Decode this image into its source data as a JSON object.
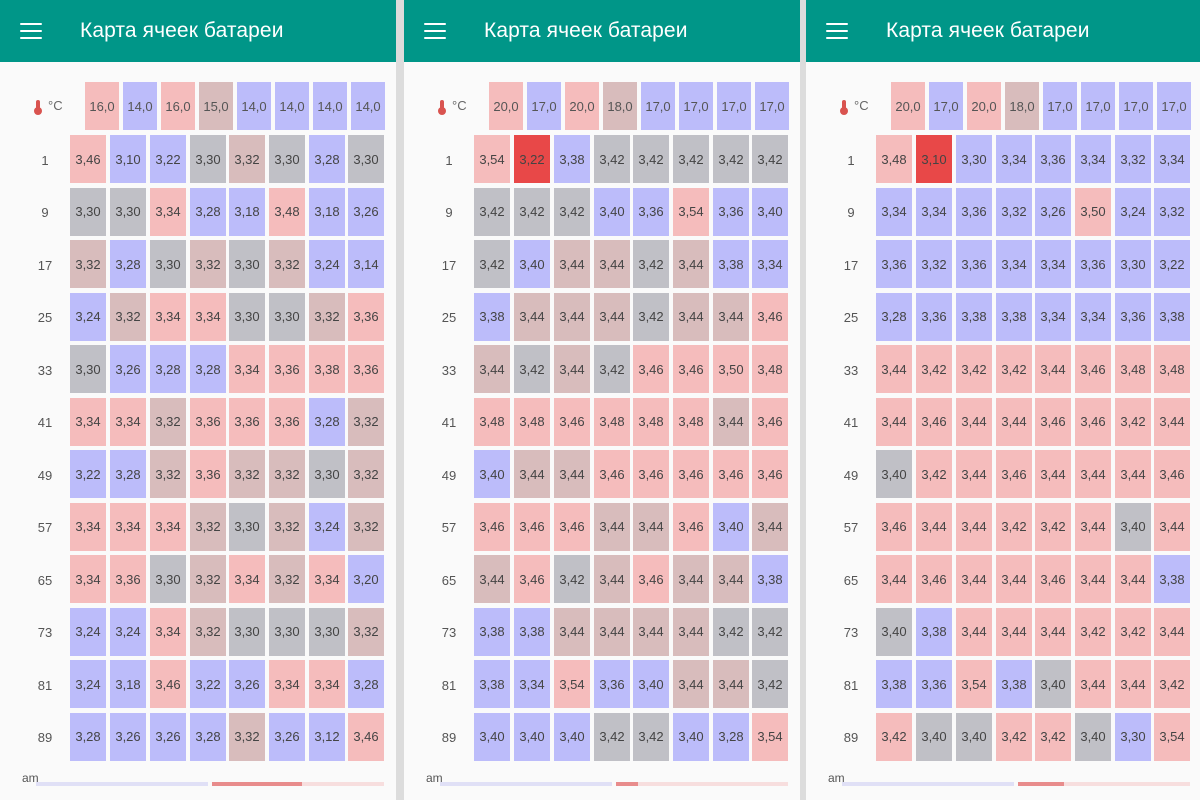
{
  "colors": {
    "appbar": "#009688",
    "cell_cool": "#bcbcfa",
    "cell_gray": "#c0c0c6",
    "cell_warm_gray": "#d8bcbc",
    "cell_warm": "#f5bcbc",
    "cell_hot": "#e84848"
  },
  "screens": [
    {
      "title": "Карта ячеек батареи",
      "temp_unit": "°C",
      "temps": [
        "16,0",
        "14,0",
        "16,0",
        "15,0",
        "14,0",
        "14,0",
        "14,0",
        "14,0"
      ],
      "rows": [
        {
          "label": "1",
          "values": [
            "3,46",
            "3,10",
            "3,22",
            "3,30",
            "3,32",
            "3,30",
            "3,28",
            "3,30"
          ]
        },
        {
          "label": "9",
          "values": [
            "3,30",
            "3,30",
            "3,34",
            "3,28",
            "3,18",
            "3,48",
            "3,18",
            "3,26"
          ]
        },
        {
          "label": "17",
          "values": [
            "3,32",
            "3,28",
            "3,30",
            "3,32",
            "3,30",
            "3,32",
            "3,24",
            "3,14"
          ]
        },
        {
          "label": "25",
          "values": [
            "3,24",
            "3,32",
            "3,34",
            "3,34",
            "3,30",
            "3,30",
            "3,32",
            "3,36"
          ]
        },
        {
          "label": "33",
          "values": [
            "3,30",
            "3,26",
            "3,28",
            "3,28",
            "3,34",
            "3,36",
            "3,38",
            "3,36"
          ]
        },
        {
          "label": "41",
          "values": [
            "3,34",
            "3,34",
            "3,32",
            "3,36",
            "3,36",
            "3,36",
            "3,28",
            "3,32"
          ]
        },
        {
          "label": "49",
          "values": [
            "3,22",
            "3,28",
            "3,32",
            "3,36",
            "3,32",
            "3,32",
            "3,30",
            "3,32"
          ]
        },
        {
          "label": "57",
          "values": [
            "3,34",
            "3,34",
            "3,34",
            "3,32",
            "3,30",
            "3,32",
            "3,24",
            "3,32"
          ]
        },
        {
          "label": "65",
          "values": [
            "3,34",
            "3,36",
            "3,30",
            "3,32",
            "3,34",
            "3,32",
            "3,34",
            "3,20"
          ]
        },
        {
          "label": "73",
          "values": [
            "3,24",
            "3,24",
            "3,34",
            "3,32",
            "3,30",
            "3,30",
            "3,30",
            "3,32"
          ]
        },
        {
          "label": "81",
          "values": [
            "3,24",
            "3,18",
            "3,46",
            "3,22",
            "3,26",
            "3,34",
            "3,34",
            "3,28"
          ]
        },
        {
          "label": "89",
          "values": [
            "3,28",
            "3,26",
            "3,26",
            "3,28",
            "3,32",
            "3,26",
            "3,12",
            "3,46"
          ]
        }
      ],
      "bottom_label": "am"
    },
    {
      "title": "Карта ячеек батареи",
      "temp_unit": "°C",
      "temps": [
        "20,0",
        "17,0",
        "20,0",
        "18,0",
        "17,0",
        "17,0",
        "17,0",
        "17,0"
      ],
      "rows": [
        {
          "label": "1",
          "values": [
            "3,54",
            "3,22",
            "3,38",
            "3,42",
            "3,42",
            "3,42",
            "3,42",
            "3,42"
          ]
        },
        {
          "label": "9",
          "values": [
            "3,42",
            "3,42",
            "3,42",
            "3,40",
            "3,36",
            "3,54",
            "3,36",
            "3,40"
          ]
        },
        {
          "label": "17",
          "values": [
            "3,42",
            "3,40",
            "3,44",
            "3,44",
            "3,42",
            "3,44",
            "3,38",
            "3,34"
          ]
        },
        {
          "label": "25",
          "values": [
            "3,38",
            "3,44",
            "3,44",
            "3,44",
            "3,42",
            "3,44",
            "3,44",
            "3,46"
          ]
        },
        {
          "label": "33",
          "values": [
            "3,44",
            "3,42",
            "3,44",
            "3,42",
            "3,46",
            "3,46",
            "3,50",
            "3,48"
          ]
        },
        {
          "label": "41",
          "values": [
            "3,48",
            "3,48",
            "3,46",
            "3,48",
            "3,48",
            "3,48",
            "3,44",
            "3,46"
          ]
        },
        {
          "label": "49",
          "values": [
            "3,40",
            "3,44",
            "3,44",
            "3,46",
            "3,46",
            "3,46",
            "3,46",
            "3,46"
          ]
        },
        {
          "label": "57",
          "values": [
            "3,46",
            "3,46",
            "3,46",
            "3,44",
            "3,44",
            "3,46",
            "3,40",
            "3,44"
          ]
        },
        {
          "label": "65",
          "values": [
            "3,44",
            "3,46",
            "3,42",
            "3,44",
            "3,46",
            "3,44",
            "3,44",
            "3,38"
          ]
        },
        {
          "label": "73",
          "values": [
            "3,38",
            "3,38",
            "3,44",
            "3,44",
            "3,44",
            "3,44",
            "3,42",
            "3,42"
          ]
        },
        {
          "label": "81",
          "values": [
            "3,38",
            "3,34",
            "3,54",
            "3,36",
            "3,40",
            "3,44",
            "3,44",
            "3,42"
          ]
        },
        {
          "label": "89",
          "values": [
            "3,40",
            "3,40",
            "3,40",
            "3,42",
            "3,42",
            "3,40",
            "3,28",
            "3,54"
          ]
        }
      ],
      "bottom_label": "am"
    },
    {
      "title": "Карта ячеек батареи",
      "temp_unit": "°C",
      "temps": [
        "20,0",
        "17,0",
        "20,0",
        "18,0",
        "17,0",
        "17,0",
        "17,0",
        "17,0"
      ],
      "rows": [
        {
          "label": "1",
          "values": [
            "3,48",
            "3,10",
            "3,30",
            "3,34",
            "3,36",
            "3,34",
            "3,32",
            "3,34"
          ]
        },
        {
          "label": "9",
          "values": [
            "3,34",
            "3,34",
            "3,36",
            "3,32",
            "3,26",
            "3,50",
            "3,24",
            "3,32"
          ]
        },
        {
          "label": "17",
          "values": [
            "3,36",
            "3,32",
            "3,36",
            "3,34",
            "3,34",
            "3,36",
            "3,30",
            "3,22"
          ]
        },
        {
          "label": "25",
          "values": [
            "3,28",
            "3,36",
            "3,38",
            "3,38",
            "3,34",
            "3,34",
            "3,36",
            "3,38"
          ]
        },
        {
          "label": "33",
          "values": [
            "3,44",
            "3,42",
            "3,42",
            "3,42",
            "3,44",
            "3,46",
            "3,48",
            "3,48"
          ]
        },
        {
          "label": "41",
          "values": [
            "3,44",
            "3,46",
            "3,44",
            "3,44",
            "3,46",
            "3,46",
            "3,42",
            "3,44"
          ]
        },
        {
          "label": "49",
          "values": [
            "3,40",
            "3,42",
            "3,44",
            "3,46",
            "3,44",
            "3,44",
            "3,44",
            "3,46"
          ]
        },
        {
          "label": "57",
          "values": [
            "3,46",
            "3,44",
            "3,44",
            "3,42",
            "3,42",
            "3,44",
            "3,40",
            "3,44"
          ]
        },
        {
          "label": "65",
          "values": [
            "3,44",
            "3,46",
            "3,44",
            "3,44",
            "3,46",
            "3,44",
            "3,44",
            "3,38"
          ]
        },
        {
          "label": "73",
          "values": [
            "3,40",
            "3,38",
            "3,44",
            "3,44",
            "3,44",
            "3,42",
            "3,42",
            "3,44"
          ]
        },
        {
          "label": "81",
          "values": [
            "3,38",
            "3,36",
            "3,54",
            "3,38",
            "3,40",
            "3,44",
            "3,44",
            "3,42"
          ]
        },
        {
          "label": "89",
          "values": [
            "3,42",
            "3,40",
            "3,40",
            "3,42",
            "3,42",
            "3,40",
            "3,30",
            "3,54"
          ]
        }
      ],
      "bottom_label": "am"
    }
  ],
  "cell_colors": [
    [
      [
        "warm",
        "cool",
        "cool",
        "gray",
        "warmgray",
        "gray",
        "cool",
        "gray"
      ],
      [
        "gray",
        "gray",
        "warm",
        "cool",
        "cool",
        "warm",
        "cool",
        "cool"
      ],
      [
        "warmgray",
        "cool",
        "gray",
        "warmgray",
        "gray",
        "warmgray",
        "cool",
        "cool"
      ],
      [
        "cool",
        "warmgray",
        "warm",
        "warm",
        "gray",
        "gray",
        "warmgray",
        "warm"
      ],
      [
        "gray",
        "cool",
        "cool",
        "cool",
        "warm",
        "warm",
        "warm",
        "warm"
      ],
      [
        "warm",
        "warm",
        "warmgray",
        "warm",
        "warm",
        "warm",
        "cool",
        "warmgray"
      ],
      [
        "cool",
        "cool",
        "warmgray",
        "warm",
        "warmgray",
        "warmgray",
        "gray",
        "warmgray"
      ],
      [
        "warm",
        "warm",
        "warm",
        "warmgray",
        "gray",
        "warmgray",
        "cool",
        "warmgray"
      ],
      [
        "warm",
        "warm",
        "gray",
        "warmgray",
        "warm",
        "warmgray",
        "warm",
        "cool"
      ],
      [
        "cool",
        "cool",
        "warm",
        "warmgray",
        "gray",
        "gray",
        "gray",
        "warmgray"
      ],
      [
        "cool",
        "cool",
        "warm",
        "cool",
        "cool",
        "warm",
        "warm",
        "cool"
      ],
      [
        "cool",
        "cool",
        "cool",
        "cool",
        "warmgray",
        "cool",
        "cool",
        "warm"
      ]
    ],
    [
      [
        "warm",
        "hot",
        "cool",
        "gray",
        "gray",
        "gray",
        "gray",
        "gray"
      ],
      [
        "gray",
        "gray",
        "gray",
        "cool",
        "cool",
        "warm",
        "cool",
        "cool"
      ],
      [
        "gray",
        "cool",
        "warmgray",
        "warmgray",
        "gray",
        "warmgray",
        "cool",
        "cool"
      ],
      [
        "cool",
        "warmgray",
        "warmgray",
        "warmgray",
        "gray",
        "warmgray",
        "warmgray",
        "warm"
      ],
      [
        "warmgray",
        "gray",
        "warmgray",
        "gray",
        "warm",
        "warm",
        "warm",
        "warm"
      ],
      [
        "warm",
        "warm",
        "warm",
        "warm",
        "warm",
        "warm",
        "warmgray",
        "warm"
      ],
      [
        "cool",
        "warmgray",
        "warmgray",
        "warm",
        "warm",
        "warm",
        "warm",
        "warm"
      ],
      [
        "warm",
        "warm",
        "warm",
        "warmgray",
        "warmgray",
        "warm",
        "cool",
        "warmgray"
      ],
      [
        "warmgray",
        "warm",
        "gray",
        "warmgray",
        "warm",
        "warmgray",
        "warmgray",
        "cool"
      ],
      [
        "cool",
        "cool",
        "warmgray",
        "warmgray",
        "warmgray",
        "warmgray",
        "gray",
        "gray"
      ],
      [
        "cool",
        "cool",
        "warm",
        "cool",
        "cool",
        "warmgray",
        "warmgray",
        "gray"
      ],
      [
        "cool",
        "cool",
        "cool",
        "gray",
        "gray",
        "cool",
        "cool",
        "warm"
      ]
    ],
    [
      [
        "warm",
        "hot",
        "cool",
        "cool",
        "cool",
        "cool",
        "cool",
        "cool"
      ],
      [
        "cool",
        "cool",
        "cool",
        "cool",
        "cool",
        "warm",
        "cool",
        "cool"
      ],
      [
        "cool",
        "cool",
        "cool",
        "cool",
        "cool",
        "cool",
        "cool",
        "cool"
      ],
      [
        "cool",
        "cool",
        "cool",
        "cool",
        "cool",
        "cool",
        "cool",
        "cool"
      ],
      [
        "warm",
        "warm",
        "warm",
        "warm",
        "warm",
        "warm",
        "warm",
        "warm"
      ],
      [
        "warm",
        "warm",
        "warm",
        "warm",
        "warm",
        "warm",
        "warm",
        "warm"
      ],
      [
        "gray",
        "warm",
        "warm",
        "warm",
        "warm",
        "warm",
        "warm",
        "warm"
      ],
      [
        "warm",
        "warm",
        "warm",
        "warm",
        "warm",
        "warm",
        "gray",
        "warm"
      ],
      [
        "warm",
        "warm",
        "warm",
        "warm",
        "warm",
        "warm",
        "warm",
        "cool"
      ],
      [
        "gray",
        "cool",
        "warm",
        "warm",
        "warm",
        "warm",
        "warm",
        "warm"
      ],
      [
        "cool",
        "cool",
        "warm",
        "cool",
        "gray",
        "warm",
        "warm",
        "warm"
      ],
      [
        "warm",
        "gray",
        "gray",
        "warm",
        "warm",
        "gray",
        "cool",
        "warm"
      ]
    ]
  ],
  "temp_colors": [
    [
      "warm",
      "cool",
      "warm",
      "warmgray",
      "cool",
      "cool",
      "cool",
      "cool"
    ],
    [
      "warm",
      "cool",
      "warm",
      "warmgray",
      "cool",
      "cool",
      "cool",
      "cool"
    ],
    [
      "warm",
      "cool",
      "warm",
      "warmgray",
      "cool",
      "cool",
      "cool",
      "cool"
    ]
  ]
}
